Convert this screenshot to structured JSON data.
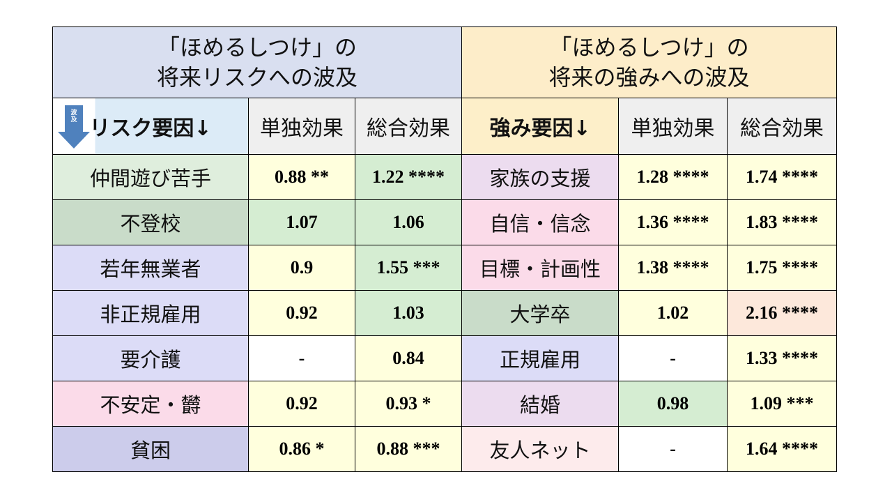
{
  "titles": {
    "risk_line1": "「ほめるしつけ」の",
    "risk_line2": "将来リスクへの波及",
    "strength_line1": "「ほめるしつけ」の",
    "strength_line2": "将来の強みへの波及"
  },
  "headers": {
    "arrow_label": "波及",
    "risk_factor": "リスク要因↓",
    "risk_single": "単独効果",
    "risk_total": "総合効果",
    "strength_factor": "強み要因↓",
    "strength_single": "単独効果",
    "strength_total": "総合効果"
  },
  "rows": [
    {
      "risk": "仲間遊び苦手",
      "r_single": "0.88 **",
      "r_total": "1.22 ****",
      "strength": "家族の支援",
      "s_single": "1.28 ****",
      "s_total": "1.74 ****"
    },
    {
      "risk": "不登校",
      "r_single": "1.07",
      "r_total": "1.06",
      "strength": "自信・信念",
      "s_single": "1.36 ****",
      "s_total": "1.83 ****"
    },
    {
      "risk": "若年無業者",
      "r_single": "0.9",
      "r_total": "1.55 ***",
      "strength": "目標・計画性",
      "s_single": "1.38 ****",
      "s_total": "1.75 ****"
    },
    {
      "risk": "非正規雇用",
      "r_single": "0.92",
      "r_total": "1.03",
      "strength": "大学卒",
      "s_single": "1.02",
      "s_total": "2.16 ****"
    },
    {
      "risk": "要介護",
      "r_single": "-",
      "r_total": "0.84",
      "strength": "正規雇用",
      "s_single": "-",
      "s_total": "1.33 ****"
    },
    {
      "risk": "不安定・欝",
      "r_single": "0.92",
      "r_total": "0.93 *",
      "strength": "結婚",
      "s_single": "0.98",
      "s_total": "1.09 ***"
    },
    {
      "risk": "貧困",
      "r_single": "0.86 *",
      "r_total": "0.88 ***",
      "strength": "友人ネット",
      "s_single": "-",
      "s_total": "1.64 ****"
    }
  ],
  "colors": {
    "title_risk_bg": "#d9dff0",
    "title_strength_bg": "#fdedc9",
    "header_gray": "#efefef",
    "header_risk_bg": "#dcebf7",
    "header_strength_bg": "#fdefc9",
    "arrow_blue": "#4f81bd",
    "yellow_cell": "#ffffdd",
    "green_cell": "#d5edd2",
    "white_cell": "#ffffff",
    "peach_cell": "#fde8db"
  }
}
